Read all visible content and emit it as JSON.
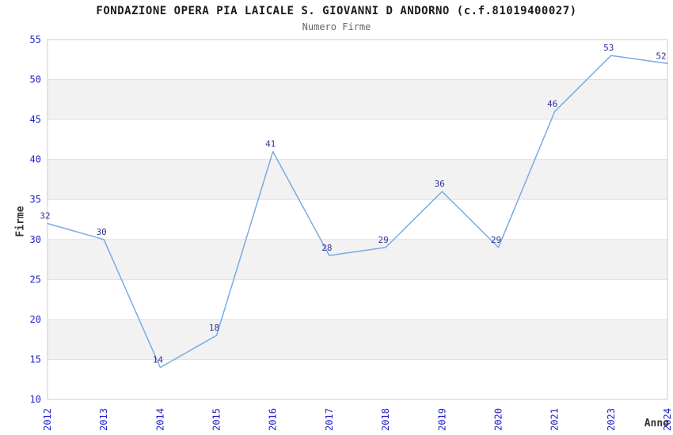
{
  "chart_data": {
    "type": "line",
    "title": "FONDAZIONE OPERA PIA LAICALE S. GIOVANNI D ANDORNO (c.f.81019400027)",
    "subtitle": "Numero Firme",
    "xlabel": "Anno",
    "ylabel": "Firme",
    "categories": [
      "2012",
      "2013",
      "2014",
      "2015",
      "2016",
      "2017",
      "2018",
      "2019",
      "2020",
      "2021",
      "2023",
      "2024"
    ],
    "values": [
      32,
      30,
      14,
      18,
      41,
      28,
      29,
      36,
      29,
      46,
      53,
      52
    ],
    "ylim": [
      10,
      55
    ],
    "ytick_step": 5,
    "yticks": [
      10,
      15,
      20,
      25,
      30,
      35,
      40,
      45,
      50,
      55
    ],
    "grid": "horizontal-bands-alternating",
    "legend": "none",
    "data_labels": "on",
    "colors": {
      "line": "#77ACE2",
      "data_label": "#31319B",
      "tick_label": "#2222CC",
      "title": "#1A1A1A",
      "subtitle": "#666666",
      "axis_title": "#333333",
      "band_gray": "#F2F2F2",
      "band_white": "#FFFFFF",
      "gridline": "#E0E0E0",
      "border": "#CCCCCC",
      "background": "#FFFFFF"
    }
  }
}
